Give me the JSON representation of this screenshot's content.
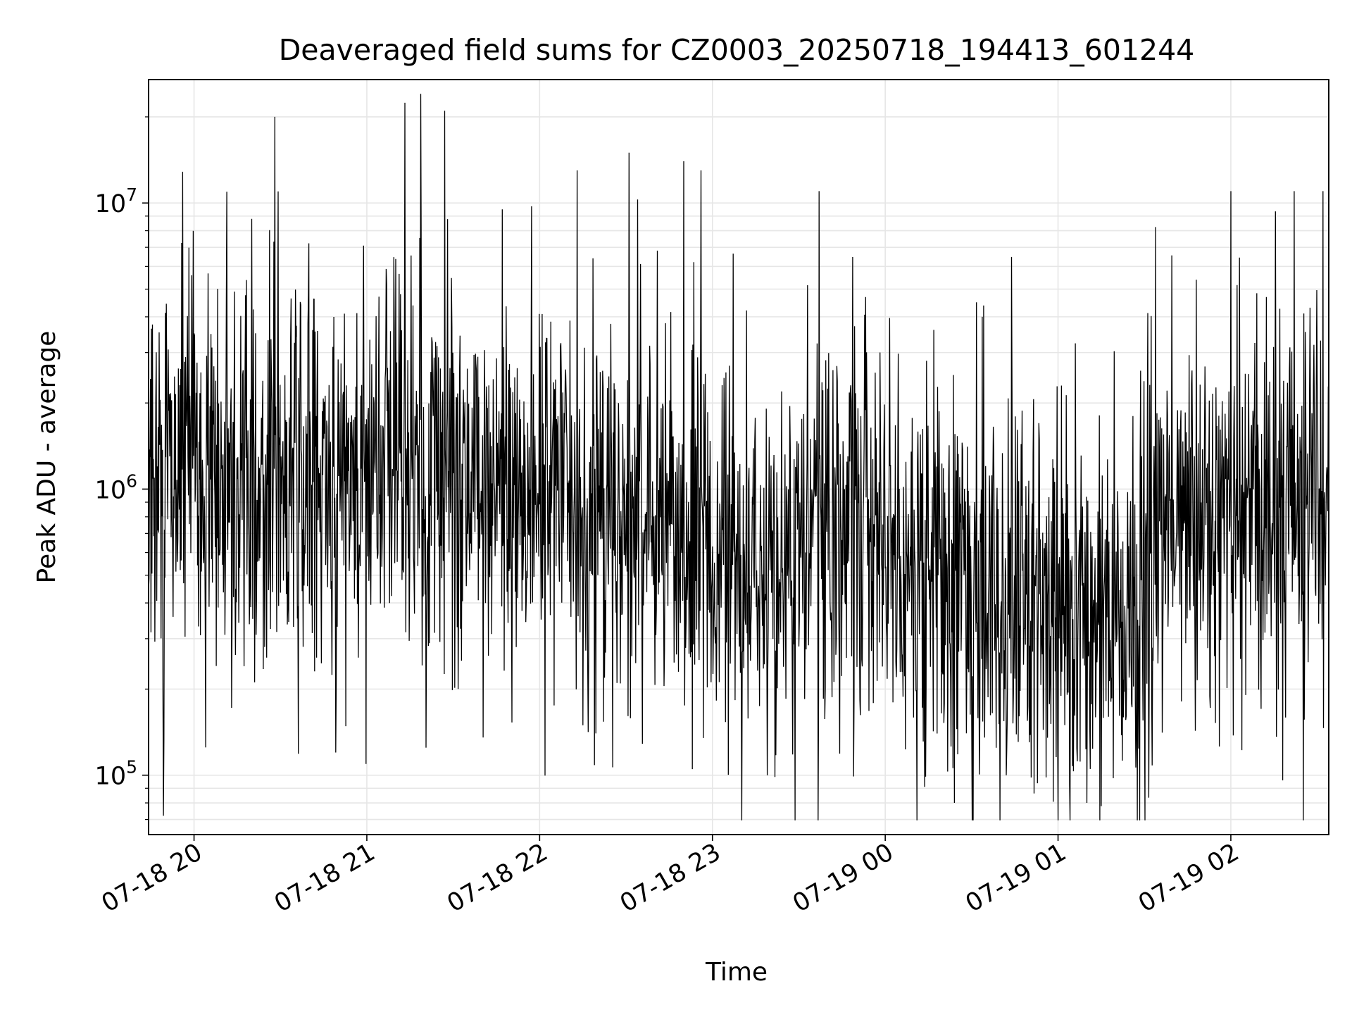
{
  "chart_data": {
    "type": "line",
    "title": "Deaveraged field sums for CZ0003_20250718_194413_601244",
    "xlabel": "Time",
    "ylabel": "Peak ADU - average",
    "yscale": "log",
    "grid": true,
    "xlim": [
      "2025-07-18 19:44:13",
      "2025-07-19 02:34:00"
    ],
    "ylim": [
      62000,
      27000000
    ],
    "x_ticks": [
      {
        "value": "2025-07-18 20:00",
        "label": "07-18 20"
      },
      {
        "value": "2025-07-18 21:00",
        "label": "07-18 21"
      },
      {
        "value": "2025-07-18 22:00",
        "label": "07-18 22"
      },
      {
        "value": "2025-07-18 23:00",
        "label": "07-18 23"
      },
      {
        "value": "2025-07-19 00:00",
        "label": "07-19 00"
      },
      {
        "value": "2025-07-19 01:00",
        "label": "07-19 01"
      },
      {
        "value": "2025-07-19 02:00",
        "label": "07-19 02"
      }
    ],
    "y_ticks": [
      {
        "value": 100000,
        "base": "10",
        "exp": "5"
      },
      {
        "value": 1000000,
        "base": "10",
        "exp": "6"
      },
      {
        "value": 10000000,
        "base": "10",
        "exp": "7"
      }
    ],
    "series": [
      {
        "color": "#000000",
        "x": [
          "2025-07-18 19:44:13",
          "2025-07-18 19:51:00",
          "2025-07-18 19:58:00",
          "2025-07-18 20:03:00",
          "2025-07-18 20:10:00",
          "2025-07-18 20:20:00",
          "2025-07-18 20:30:00",
          "2025-07-18 20:40:00",
          "2025-07-18 20:50:00",
          "2025-07-18 21:00:00",
          "2025-07-18 21:10:00",
          "2025-07-18 21:20:00",
          "2025-07-18 21:30:00",
          "2025-07-18 21:40:00",
          "2025-07-18 21:50:00",
          "2025-07-18 22:00:00",
          "2025-07-18 22:10:00",
          "2025-07-18 22:20:00",
          "2025-07-18 22:30:00",
          "2025-07-18 22:40:00",
          "2025-07-18 22:50:00",
          "2025-07-18 23:00:00",
          "2025-07-18 23:10:00",
          "2025-07-18 23:20:00",
          "2025-07-18 23:30:00",
          "2025-07-18 23:40:00",
          "2025-07-18 23:50:00",
          "2025-07-19 00:00:00",
          "2025-07-19 00:10:00",
          "2025-07-19 00:20:00",
          "2025-07-19 00:30:00",
          "2025-07-19 00:40:00",
          "2025-07-19 00:50:00",
          "2025-07-19 01:00:00",
          "2025-07-19 01:10:00",
          "2025-07-19 01:20:00",
          "2025-07-19 01:30:00",
          "2025-07-19 01:40:00",
          "2025-07-19 01:50:00",
          "2025-07-19 02:00:00",
          "2025-07-19 02:10:00",
          "2025-07-19 02:20:00",
          "2025-07-19 02:34:00"
        ],
        "y": [
          800000,
          1000000,
          1600000,
          1100000,
          850000,
          1100000,
          1050000,
          1000000,
          1000000,
          1200000,
          1400000,
          1050000,
          1000000,
          1050000,
          1000000,
          950000,
          900000,
          850000,
          800000,
          760000,
          700000,
          650000,
          580000,
          550000,
          620000,
          800000,
          750000,
          600000,
          520000,
          450000,
          380000,
          400000,
          430000,
          420000,
          380000,
          400000,
          500000,
          600000,
          700000,
          800000,
          850000,
          850000,
          900000
        ],
        "spikes": [
          {
            "x": "2025-07-18 20:28:00",
            "y": 20000000
          },
          {
            "x": "2025-07-18 21:27:00",
            "y": 21000000
          },
          {
            "x": "2025-07-18 22:31:00",
            "y": 15000000
          },
          {
            "x": "2025-07-18 22:50:00",
            "y": 14000000
          },
          {
            "x": "2025-07-18 22:56:00",
            "y": 13000000
          },
          {
            "x": "2025-07-18 22:13:00",
            "y": 13000000
          },
          {
            "x": "2025-07-18 23:37:00",
            "y": 11000000
          },
          {
            "x": "2025-07-19 02:00:00",
            "y": 11000000
          },
          {
            "x": "2025-07-19 02:22:00",
            "y": 11000000
          },
          {
            "x": "2025-07-19 02:32:00",
            "y": 11000000
          },
          {
            "x": "2025-07-18 20:20:00",
            "y": 8800000
          },
          {
            "x": "2025-07-18 21:47:00",
            "y": 9500000
          },
          {
            "x": "2025-07-19 00:42:00",
            "y": 100000
          },
          {
            "x": "2025-07-19 00:24:00",
            "y": 80000
          },
          {
            "x": "2025-07-19 01:10:00",
            "y": 80000
          },
          {
            "x": "2025-07-18 20:04:00",
            "y": 125000
          },
          {
            "x": "2025-07-18 22:53:00",
            "y": 105000
          },
          {
            "x": "2025-07-18 23:19:00",
            "y": 100000
          }
        ]
      }
    ]
  }
}
